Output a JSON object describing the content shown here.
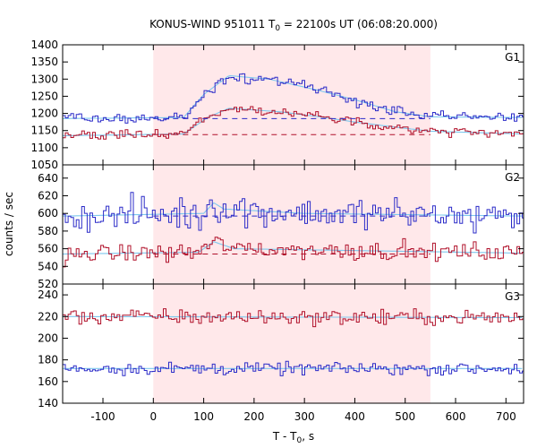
{
  "chart_data": {
    "type": "line",
    "title_main": "KONUS-WIND 951011 T",
    "title_sub": "0",
    "title_rest": " = 22100s UT (06:08:20.000)",
    "xlabel_main": "T - T",
    "xlabel_sub": "0",
    "xlabel_rest": ", s",
    "ylabel": "counts / sec",
    "xlim": [
      -180,
      735
    ],
    "xticks": [
      -100,
      0,
      100,
      200,
      300,
      400,
      500,
      600,
      700
    ],
    "shaded_interval": [
      0,
      550
    ],
    "grid": false,
    "legend": "none",
    "colors": {
      "blue": "#2b2bc8",
      "red": "#b0102a",
      "fit": "#7ec8ee",
      "shade": "#ffe8ea"
    },
    "panels": [
      {
        "label": "G1",
        "ylim": [
          1050,
          1400
        ],
        "yticks": [
          1050,
          1100,
          1150,
          1200,
          1250,
          1300,
          1350,
          1400
        ],
        "blue_background": 1185,
        "red_background": 1138,
        "blue_trend": [
          [
            -180,
            1185
          ],
          [
            60,
            1188
          ],
          [
            100,
            1255
          ],
          [
            150,
            1310
          ],
          [
            230,
            1300
          ],
          [
            320,
            1270
          ],
          [
            400,
            1240
          ],
          [
            480,
            1205
          ],
          [
            550,
            1190
          ],
          [
            735,
            1188
          ]
        ],
        "red_trend": [
          [
            -180,
            1135
          ],
          [
            60,
            1140
          ],
          [
            110,
            1190
          ],
          [
            150,
            1215
          ],
          [
            250,
            1205
          ],
          [
            330,
            1190
          ],
          [
            400,
            1175
          ],
          [
            480,
            1160
          ],
          [
            550,
            1148
          ],
          [
            735,
            1140
          ]
        ],
        "blue_noise": 12,
        "red_noise": 10
      },
      {
        "label": "G2",
        "ylim": [
          520,
          655
        ],
        "yticks": [
          520,
          540,
          560,
          580,
          600,
          620,
          640
        ],
        "blue_background": 597,
        "red_background": 554,
        "blue_trend": [
          [
            -180,
            597
          ],
          [
            100,
            600
          ],
          [
            120,
            612
          ],
          [
            140,
            605
          ],
          [
            300,
            600
          ],
          [
            735,
            597
          ]
        ],
        "red_trend": [
          [
            -180,
            554
          ],
          [
            90,
            556
          ],
          [
            120,
            568
          ],
          [
            160,
            560
          ],
          [
            735,
            555
          ]
        ],
        "blue_noise": 13,
        "red_noise": 7
      },
      {
        "label": "G3",
        "ylim": [
          140,
          250
        ],
        "yticks": [
          140,
          160,
          180,
          200,
          220,
          240
        ],
        "blue_background": 172,
        "red_background": 219,
        "blue_trend": [
          [
            -180,
            172
          ],
          [
            735,
            172
          ]
        ],
        "red_trend": [
          [
            -180,
            220
          ],
          [
            735,
            219
          ]
        ],
        "blue_noise": 4,
        "red_noise": 5
      }
    ]
  }
}
